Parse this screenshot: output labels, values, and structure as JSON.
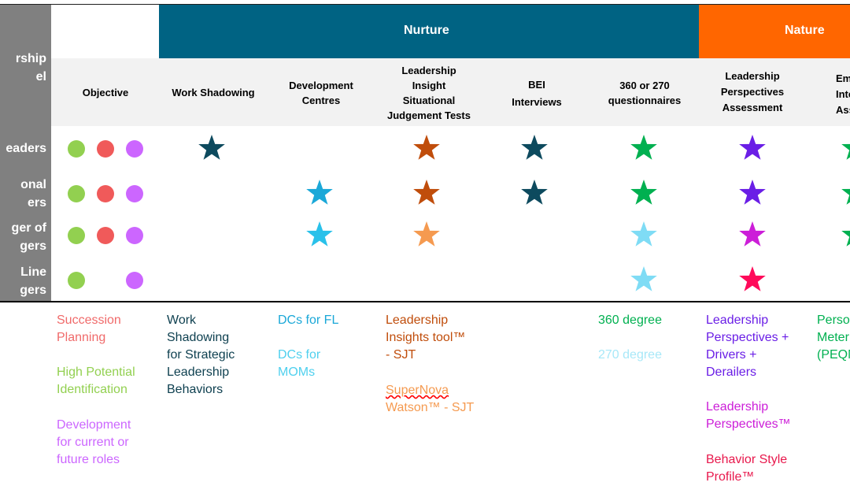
{
  "header": {
    "title_left": [
      "rship",
      "el"
    ],
    "nurture": "Nurture",
    "nature": "Nature"
  },
  "rows": [
    {
      "label": [
        "eaders"
      ]
    },
    {
      "label": [
        "onal",
        "ers"
      ]
    },
    {
      "label": [
        "ger of",
        "gers"
      ]
    },
    {
      "label": [
        "Line",
        "gers"
      ]
    }
  ],
  "columns": {
    "objective": "Objective",
    "work_shadowing": "Work Shadowing",
    "development_centres": [
      "Development",
      "Centres"
    ],
    "leadership_insight": [
      "Leadership",
      "Insight",
      "Situational",
      "Judgement Tests"
    ],
    "bei": [
      "BEI",
      "Interviews"
    ],
    "q360": [
      "360 or 270",
      "questionnaires"
    ],
    "lpa": [
      "Leadership",
      "Perspectives",
      "Assessment"
    ],
    "ei": [
      "Em",
      "Inte",
      "Asse"
    ]
  },
  "colors": {
    "nurture_band": "#006383",
    "nature_band": "#ff6600",
    "green_dot": "#92d050",
    "red_dot": "#f05a5a",
    "purple_dot": "#cc66ff",
    "dark_teal": "#0d4a5e",
    "cyan": "#1ba8d8",
    "light_cyan": "#7fdcf5",
    "rust": "#c04d0b",
    "light_orange": "#f59a50",
    "green": "#00b050",
    "violet": "#6a1ee6",
    "magenta": "#cc1ed8",
    "crimson": "#ff0a5a",
    "green_text": "#00b050"
  },
  "footnotes": {
    "objective": {
      "succession": [
        "Succession",
        "Planning"
      ],
      "hipo": [
        "High Potential",
        "Identification"
      ],
      "development": [
        "Development",
        "for current or",
        "future roles"
      ]
    },
    "work_shadowing": [
      "Work",
      "Shadowing",
      "for Strategic",
      "Leadership",
      "Behaviors"
    ],
    "dcs": {
      "fl": "DCs for FL",
      "moms": [
        "DCs for",
        "MOMs"
      ]
    },
    "sjt": {
      "leadership_insights": [
        "Leadership",
        "Insights tool™",
        "- SJT"
      ],
      "supernova_a": "SuperNova",
      "supernova_b": "Watson™ - SJT"
    },
    "degree": {
      "d360": "360 degree",
      "d270": "270 degree"
    },
    "lp": {
      "drivers": [
        "Leadership",
        "Perspectives +",
        "Drivers +",
        "Derailers"
      ],
      "lp": [
        "Leadership",
        "Perspectives™"
      ],
      "bsp": [
        "Behavior Style",
        "Profile™"
      ]
    },
    "peq": [
      "Perso",
      "Meter",
      "(PEQM"
    ]
  }
}
